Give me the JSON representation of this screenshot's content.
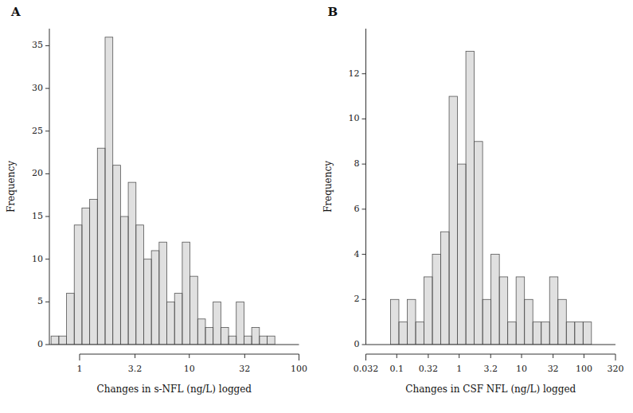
{
  "chart_data": [
    {
      "type": "histogram",
      "title": "A",
      "x_label": "Changes in s-NFL (ng/L) logged",
      "y_label": "Frequency",
      "bins": [
        0.5495,
        0.6462,
        0.7598,
        0.8934,
        1.0505,
        1.2352,
        1.4523,
        1.7077,
        2.008,
        2.361,
        2.7762,
        3.2643,
        3.8383,
        4.5132,
        5.3067,
        6.2398,
        7.337,
        8.6271,
        10.144,
        11.928,
        14.025,
        16.491,
        19.39,
        22.8,
        26.809,
        31.523,
        37.065,
        43.582,
        51.246,
        60.256
      ],
      "values": [
        1,
        1,
        6,
        14,
        16,
        17,
        23,
        36,
        21,
        15,
        19,
        14,
        10,
        11,
        12,
        5,
        6,
        12,
        8,
        3,
        2,
        5,
        2,
        1,
        5,
        1,
        2,
        1,
        1
      ],
      "color": "#555555",
      "log": "x",
      "grid": false,
      "xlim": [
        0.53,
        100
      ],
      "xticks": [
        1,
        3.2,
        10,
        32,
        100
      ],
      "ylim": [
        0,
        37
      ],
      "yticks": [
        0,
        5,
        10,
        15,
        20,
        25,
        30,
        35
      ]
    },
    {
      "type": "histogram",
      "title": "B",
      "x_label": "Changes in CSF NFL (ng/L) logged",
      "y_label": "Frequency",
      "bins": [
        0.07943,
        0.10819,
        0.14734,
        0.20068,
        0.27332,
        0.37225,
        0.50699,
        0.6905,
        0.94044,
        1.2809,
        1.7445,
        2.3759,
        3.2359,
        4.4072,
        6.0025,
        8.1752,
        11.134,
        15.165,
        20.654,
        28.13,
        38.312,
        52.18,
        71.067,
        96.791,
        131.83
      ],
      "values": [
        2,
        1,
        2,
        1,
        3,
        4,
        5,
        11,
        8,
        13,
        9,
        2,
        4,
        3,
        1,
        3,
        2,
        1,
        1,
        3,
        2,
        1,
        1,
        1
      ],
      "color": "#555555",
      "log": "x",
      "grid": false,
      "xlim": [
        0.032,
        320
      ],
      "xticks": [
        0.032,
        0.1,
        0.32,
        1,
        3.2,
        10,
        32,
        100,
        320
      ],
      "ylim": [
        0,
        14
      ],
      "yticks": [
        0,
        2,
        4,
        6,
        8,
        10,
        12
      ]
    }
  ]
}
